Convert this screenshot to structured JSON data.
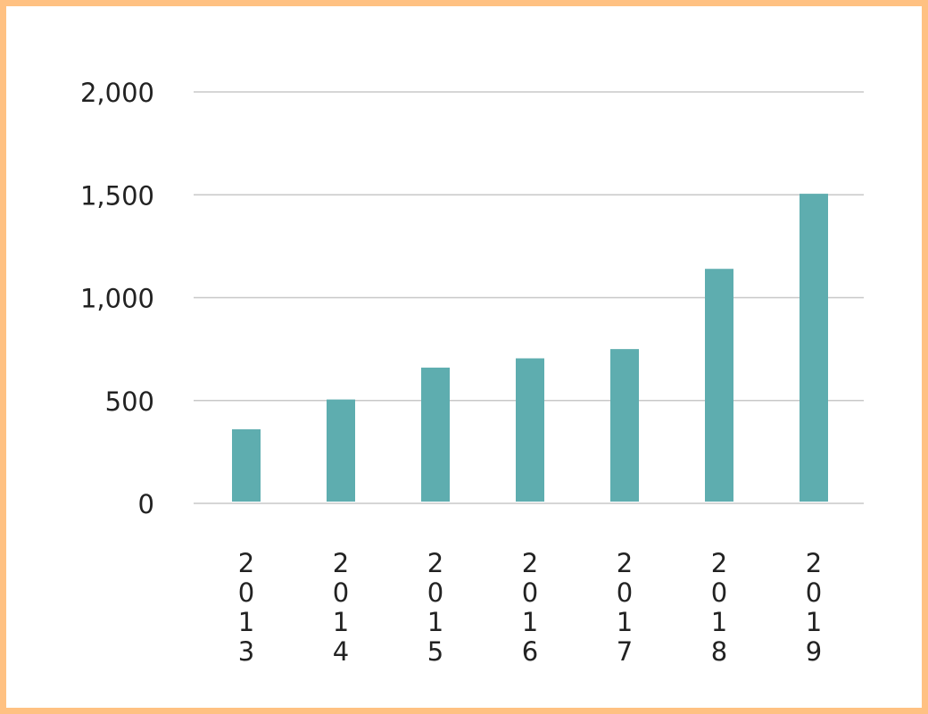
{
  "chart_data": {
    "type": "bar",
    "categories": [
      "2013",
      "2014",
      "2015",
      "2016",
      "2017",
      "2018",
      "2019"
    ],
    "values": [
      360,
      505,
      660,
      705,
      750,
      1140,
      1505
    ],
    "y_ticks": [
      "0",
      "500",
      "1,000",
      "1,500",
      "2,000"
    ],
    "y_tick_values": [
      0,
      500,
      1000,
      1500,
      2000
    ],
    "ylim": [
      0,
      2000
    ],
    "grid": true,
    "title": "",
    "xlabel": "",
    "ylabel": "",
    "colors": {
      "bar": "#5EADAF",
      "frame": "#FFC182",
      "grid": "#C8C8C8",
      "text": "#222222"
    }
  }
}
